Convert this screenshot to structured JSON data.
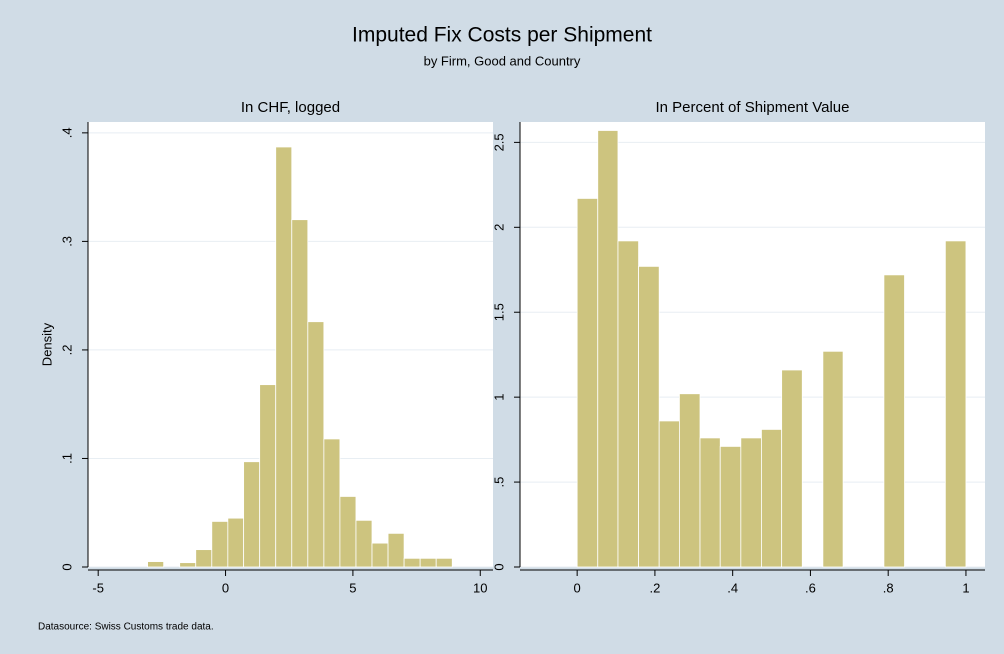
{
  "header": {
    "title": "Imputed Fix Costs per Shipment",
    "subtitle": "by Firm, Good and Country"
  },
  "note": "Datasource: Swiss Customs trade data.",
  "chart_data": [
    {
      "type": "histogram",
      "title": "In CHF, logged",
      "ylabel": "Density",
      "color": "#cdc47f",
      "grid": true,
      "bins": [
        -3.06,
        -2.43,
        -1.8,
        -1.17,
        -0.54,
        0.09,
        0.71,
        1.34,
        1.97,
        2.6,
        3.23,
        3.86,
        4.49,
        5.12,
        5.75,
        6.38,
        7.01,
        7.64,
        8.27,
        8.9
      ],
      "values": [
        0.005,
        0,
        0.004,
        0.016,
        0.042,
        0.045,
        0.097,
        0.168,
        0.387,
        0.32,
        0.226,
        0.118,
        0.065,
        0.043,
        0.022,
        0.031,
        0.008,
        0.008,
        0.008
      ],
      "xlim": [
        -5.4,
        10.5
      ],
      "xticks": [
        -5,
        0,
        5,
        10
      ],
      "ylim": [
        0,
        0.41
      ],
      "yticks": [
        0,
        {
          "value": 0.1,
          "label": ".1"
        },
        {
          "value": 0.2,
          "label": ".2"
        },
        {
          "value": 0.3,
          "label": ".3"
        },
        {
          "value": 0.4,
          "label": ".4"
        }
      ]
    },
    {
      "type": "histogram",
      "title": "In Percent of Shipment Value",
      "color": "#cdc47f",
      "grid": true,
      "bins": [
        0,
        0.053,
        0.105,
        0.158,
        0.211,
        0.263,
        0.316,
        0.368,
        0.421,
        0.474,
        0.526,
        0.579,
        0.632,
        0.684,
        0.737,
        0.789,
        0.842,
        0.895,
        0.947,
        1
      ],
      "values": [
        2.17,
        2.57,
        1.92,
        1.77,
        0.86,
        1.02,
        0.76,
        0.71,
        0.76,
        0.81,
        1.16,
        0,
        1.27,
        0,
        0,
        1.72,
        0,
        0,
        1.92
      ],
      "xlim": [
        -0.147,
        1.049
      ],
      "xticks": [
        0,
        {
          "value": 0.2,
          "label": ".2"
        },
        {
          "value": 0.4,
          "label": ".4"
        },
        {
          "value": 0.6,
          "label": ".6"
        },
        {
          "value": 0.8,
          "label": ".8"
        },
        1
      ],
      "ylim": [
        0,
        2.62
      ],
      "yticks": [
        0,
        {
          "value": 0.5,
          "label": ".5"
        },
        1,
        1.5,
        2,
        2.5
      ]
    }
  ]
}
